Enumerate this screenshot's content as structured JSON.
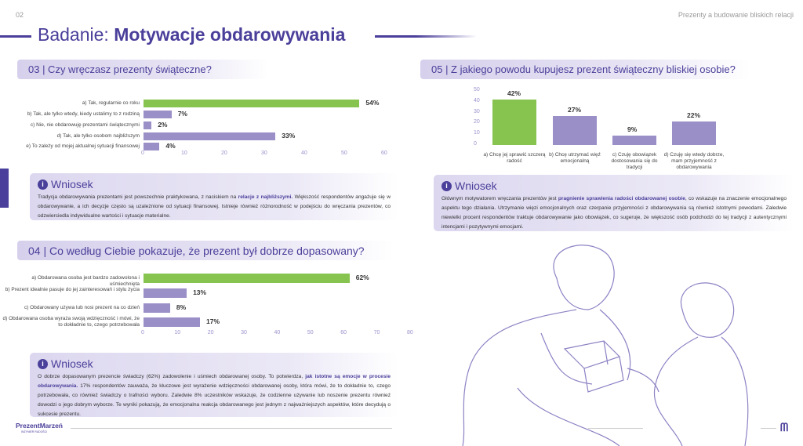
{
  "header": {
    "page_number": "02",
    "document_title": "Prezenty a budowanie bliskich relacji",
    "title_regular": "Badanie: ",
    "title_bold": "Motywacje obdarowywania"
  },
  "colors": {
    "accent": "#4a3f9a",
    "bar": "#9b8fc8",
    "highlight_bar": "#86c34f"
  },
  "q03": {
    "heading": "03 | Czy wręczasz prezenty świąteczne?",
    "chart_data": {
      "type": "bar",
      "orientation": "horizontal",
      "categories": [
        "a) Tak, regularnie co roku",
        "b) Tak, ale tylko wtedy, kiedy ustalimy to z rodziną",
        "c) Nie, nie obdarowuję prezentami świątecznymi",
        "d) Tak, ale tylko osobom najbliższym",
        "e) To zależy od mojej aktualnej sytuacji finansowej"
      ],
      "values": [
        54,
        7,
        2,
        33,
        4
      ],
      "value_labels": [
        "54%",
        "7%",
        "2%",
        "33%",
        "4%"
      ],
      "xlim": [
        0,
        60
      ],
      "ticks": [
        "0",
        "10",
        "20",
        "30",
        "40",
        "50",
        "60"
      ],
      "highlight_index": 0
    },
    "conclusion": {
      "title": "Wniosek",
      "before": "Tradycja obdarowywania prezentami jest powszechnie praktykowana, z naciskiem na ",
      "highlight": "relacje z najbliższymi.",
      "after": " Większość respondentów angażuje się w obdarowywanie, a ich decyzje często są uzależnione od sytuacji finansowej. Istnieje również różnorodność w podejściu do wręczania prezentów, co odzwierciedla indywidualne wartości i sytuacje materialne."
    }
  },
  "q05": {
    "heading": "05 | Z jakiego powodu kupujesz prezent świąteczny bliskiej osobie?",
    "chart_data": {
      "type": "bar",
      "orientation": "vertical",
      "categories": [
        "a) Chcę jej sprawić szczerą radość",
        "b) Chcę utrzymać więź emocjonalną",
        "c) Czuję obowiązek dostosowania się do tradycji",
        "d) Czuję się wtedy dobrze, mam przyjemność z obdarowywania"
      ],
      "values": [
        42,
        27,
        9,
        22
      ],
      "value_labels": [
        "42%",
        "27%",
        "9%",
        "22%"
      ],
      "ylim": [
        0,
        50
      ],
      "ticks": [
        "0",
        "10",
        "20",
        "30",
        "40",
        "50"
      ],
      "highlight_index": 0
    },
    "conclusion": {
      "title": "Wniosek",
      "before": "Głównym motywatorem wręczania prezentów jest ",
      "highlight": "pragnienie sprawienia radości obdarowanej osobie",
      "after": ", co wskazuje na znaczenie emocjonalnego aspektu tego działania. Utrzymanie więzi emocjonalnych oraz czerpanie przyjemności z obdarowywania są również istotnymi powodami. Zaledwie niewielki procent respondentów traktuje obdarowywanie jako obowiązek, co sugeruje, że większość osób podchodzi do tej tradycji z autentycznymi intencjami i pozytywnymi emocjami."
    }
  },
  "q04": {
    "heading": "04 | Co według Ciebie pokazuje, że prezent był dobrze dopasowany?",
    "chart_data": {
      "type": "bar",
      "orientation": "horizontal",
      "categories": [
        "a) Obdarowana osoba jest bardzo zadowolona i uśmiechnięta",
        "b) Prezent idealnie pasuje do jej zainteresowań i stylu życia",
        "c) Obdarowany używa lub nosi prezent na co dzień",
        "d) Obdarowana osoba wyraża swoją wdzięczność i mówi, że to dokładnie to, czego potrzebowała"
      ],
      "values": [
        62,
        13,
        8,
        17
      ],
      "value_labels": [
        "62%",
        "13%",
        "8%",
        "17%"
      ],
      "xlim": [
        0,
        80
      ],
      "ticks": [
        "0",
        "10",
        "20",
        "30",
        "40",
        "50",
        "60",
        "70",
        "80"
      ],
      "highlight_index": 0
    },
    "conclusion": {
      "title": "Wniosek",
      "before": "O dobrze dopasowanym prezencie świadczy (62%) zadowolenie i uśmiech obdarowanej osoby. To potwierdza, ",
      "highlight": "jak istotne są emocje w procesie obdarowywania.",
      "after": " 17% respondentów zauważa, że kluczowe jest wyrażenie wdzięczności obdarowanej osoby, która mówi, że to dokładnie to, czego potrzebowała, co również świadczy o trafności wyboru. Zaledwie 8% uczestników wskazuje, że codzienne używanie lub noszenie prezentu również dowodzi o jego dobrym wyborze. Te wyniki pokazują, że emocjonalna reakcja obdarowanego jest jednym z najważniejszych aspektów, które decydują o sukcesie prezentu."
    }
  },
  "footer": {
    "logo": "PrezentMarzeń",
    "logo_tagline": "INŻYNIER RADOŚCI"
  }
}
